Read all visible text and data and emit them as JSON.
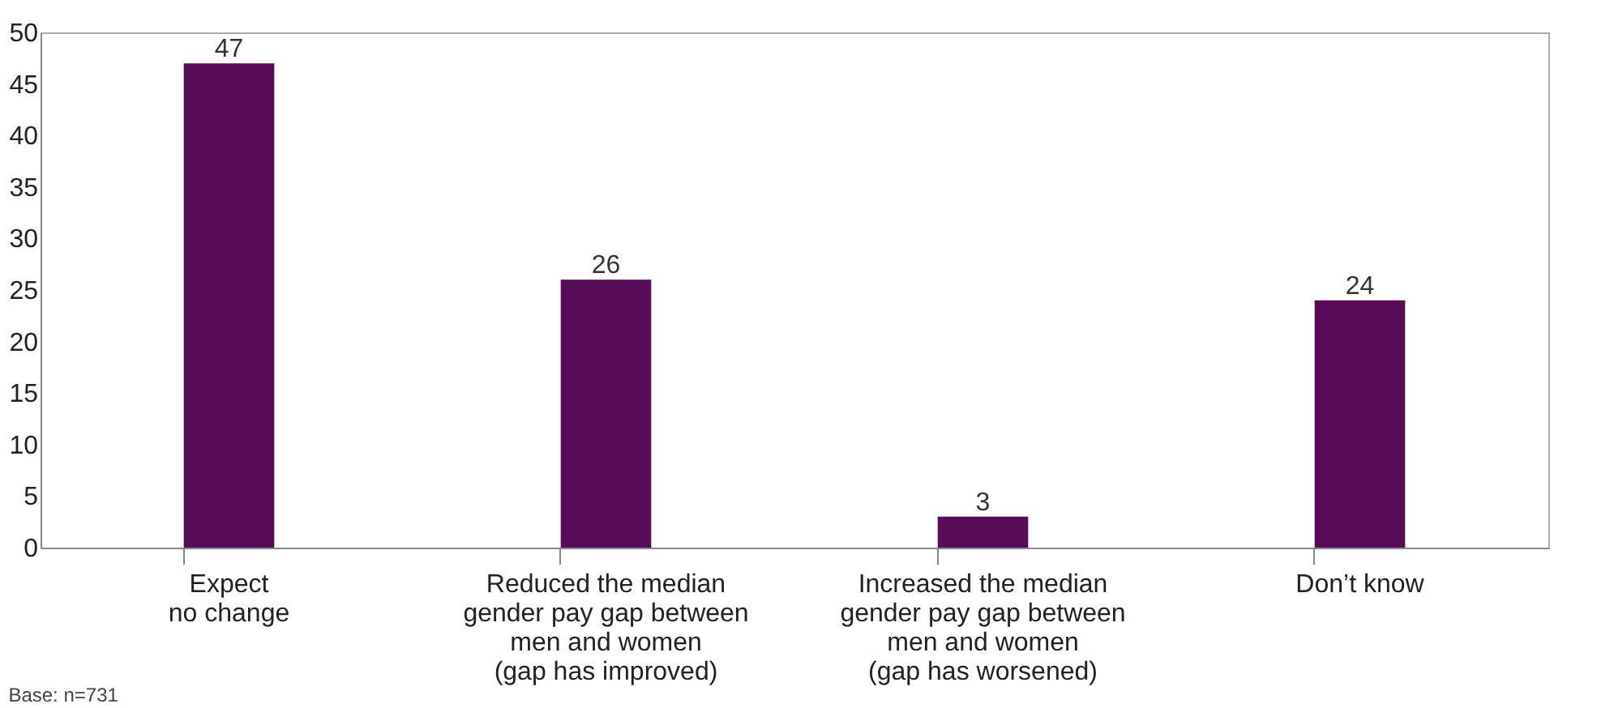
{
  "chart_data": {
    "type": "bar",
    "categories": [
      "Expect\nno change",
      "Reduced the median\ngender pay gap between\nmen and women\n(gap has improved)",
      "Increased the median\ngender pay gap between\nmen and women\n(gap has worsened)",
      "Don’t know"
    ],
    "values": [
      47,
      26,
      3,
      24
    ],
    "color": "#570c5a",
    "ylim": [
      0,
      50
    ],
    "yticks": [
      0,
      5,
      10,
      15,
      20,
      25,
      30,
      35,
      40,
      45,
      50
    ],
    "grid": false,
    "data_labels": true,
    "annotations": [
      "Base: n=731"
    ]
  }
}
